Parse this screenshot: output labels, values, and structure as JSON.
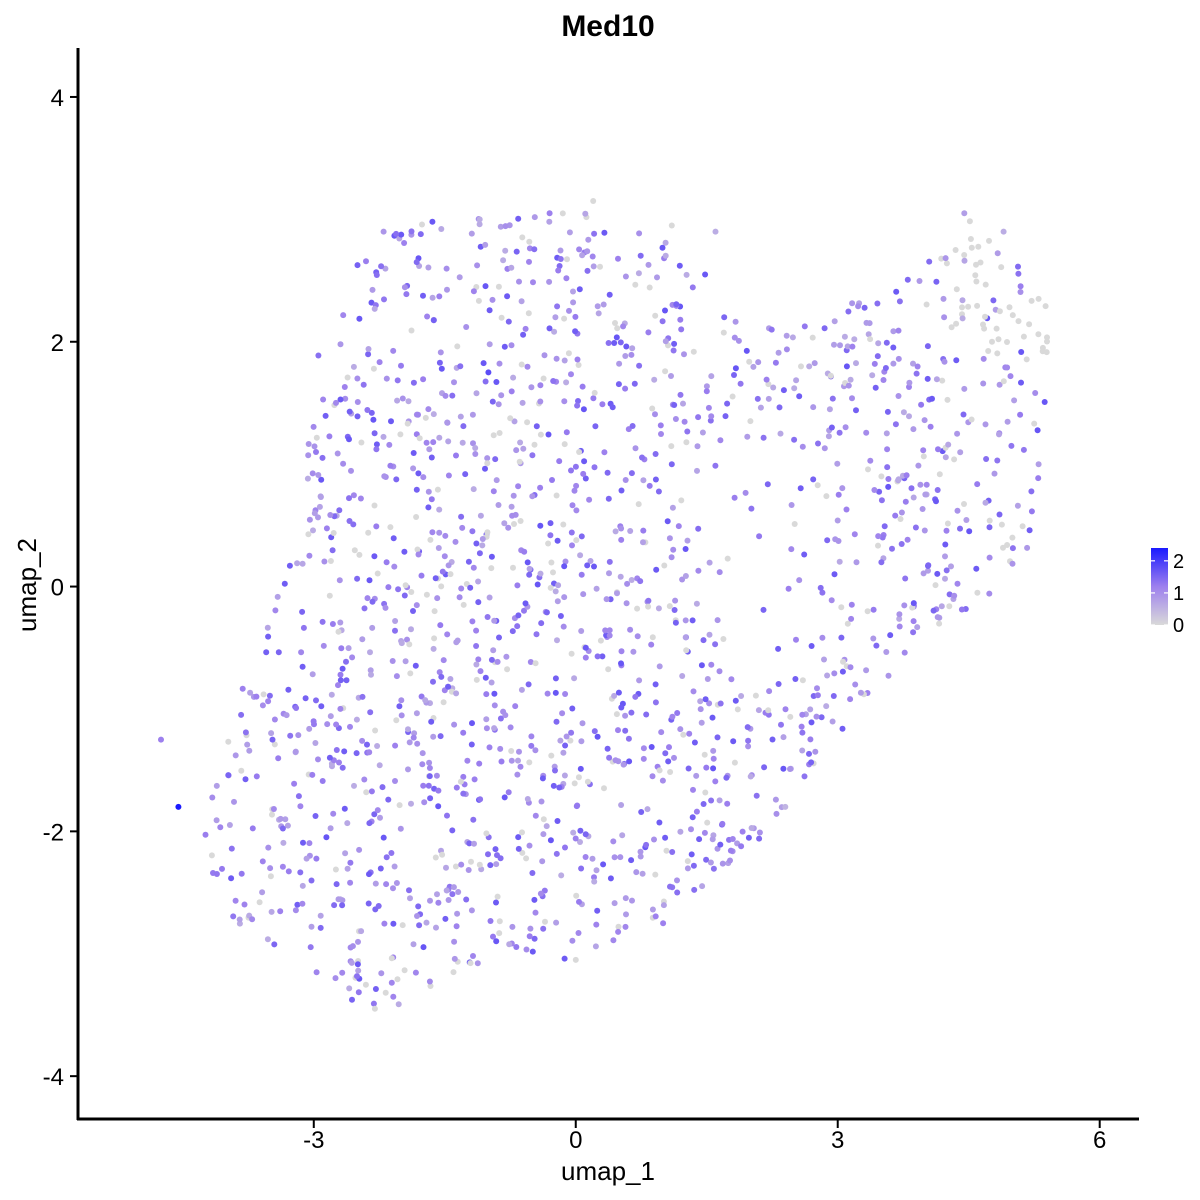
{
  "chart_data": {
    "type": "scatter",
    "title": "Med10",
    "xlabel": "umap_1",
    "ylabel": "umap_2",
    "xlim": [
      -5.7,
      6.45
    ],
    "ylim": [
      -4.35,
      4.4
    ],
    "xticks": [
      -3,
      0,
      3,
      6
    ],
    "yticks": [
      -4,
      -2,
      0,
      2,
      4
    ],
    "xtick_labels": [
      "-3",
      "0",
      "3",
      "6"
    ],
    "ytick_labels": [
      "-4",
      "-2",
      "0",
      "2",
      "4"
    ],
    "grid": false,
    "legend": {
      "position": "right",
      "ticks": [
        0,
        1,
        2
      ],
      "tick_labels": [
        "0",
        "1",
        "2"
      ],
      "range": [
        0,
        2.4
      ]
    },
    "colors": {
      "low": "#d9d9d9",
      "high": "#1a1aff",
      "axis": "#000000"
    },
    "point_count_approx": 1800,
    "representative_points": [
      {
        "x": -4.75,
        "y": -1.25,
        "expr": 1.2
      },
      {
        "x": -4.55,
        "y": -1.8,
        "expr": 2.4
      },
      {
        "x": -3.5,
        "y": -2.3,
        "expr": 1.0
      },
      {
        "x": -2.3,
        "y": -3.45,
        "expr": 0.0
      },
      {
        "x": -1.4,
        "y": -3.15,
        "expr": 0.0
      },
      {
        "x": -2.5,
        "y": 1.7,
        "expr": 1.0
      },
      {
        "x": -2.2,
        "y": 2.9,
        "expr": 0.9
      },
      {
        "x": -1.1,
        "y": 3.0,
        "expr": 0.6
      },
      {
        "x": -0.3,
        "y": 3.05,
        "expr": 1.2
      },
      {
        "x": 0.2,
        "y": 3.15,
        "expr": 0.0
      },
      {
        "x": 1.1,
        "y": 2.95,
        "expr": 0.0
      },
      {
        "x": 1.6,
        "y": 2.9,
        "expr": 0.6
      },
      {
        "x": 1.7,
        "y": 2.2,
        "expr": 1.5
      },
      {
        "x": -1.0,
        "y": 1.75,
        "expr": 1.8
      },
      {
        "x": 1.1,
        "y": 1.0,
        "expr": 1.5
      },
      {
        "x": 0.0,
        "y": -3.05,
        "expr": 0.0
      },
      {
        "x": 1.0,
        "y": -2.75,
        "expr": 1.2
      },
      {
        "x": 2.4,
        "y": -1.8,
        "expr": 0.5
      },
      {
        "x": 3.2,
        "y": -0.8,
        "expr": 1.0
      },
      {
        "x": 4.35,
        "y": 2.75,
        "expr": 0.0
      },
      {
        "x": 4.45,
        "y": 3.05,
        "expr": 0.8
      },
      {
        "x": 4.9,
        "y": 2.9,
        "expr": 0.6
      },
      {
        "x": 5.3,
        "y": 2.35,
        "expr": 0.0
      },
      {
        "x": 5.35,
        "y": 1.95,
        "expr": 0.0
      },
      {
        "x": 5.3,
        "y": 1.0,
        "expr": 0.8
      },
      {
        "x": 5.0,
        "y": 0.4,
        "expr": 0.0
      },
      {
        "x": 4.6,
        "y": -0.05,
        "expr": 0.0
      },
      {
        "x": 3.5,
        "y": 0.9,
        "expr": 0.0
      },
      {
        "x": 2.5,
        "y": 1.2,
        "expr": 1.4
      }
    ]
  }
}
